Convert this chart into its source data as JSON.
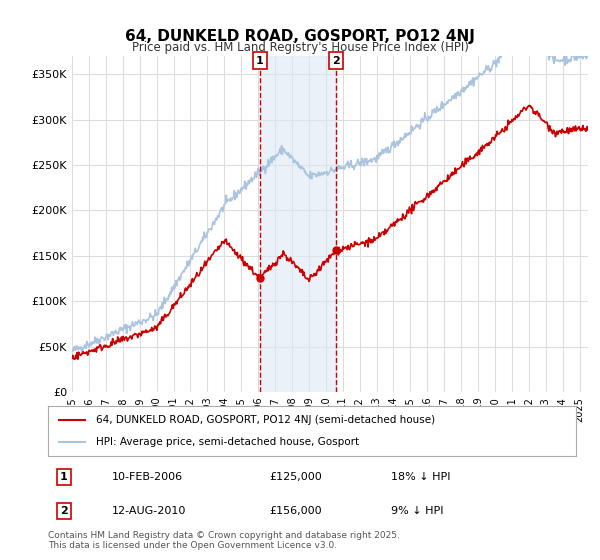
{
  "title": "64, DUNKELD ROAD, GOSPORT, PO12 4NJ",
  "subtitle": "Price paid vs. HM Land Registry's House Price Index (HPI)",
  "xlabel": "",
  "ylabel": "",
  "ylim": [
    0,
    370000
  ],
  "yticks": [
    0,
    50000,
    100000,
    150000,
    200000,
    250000,
    300000,
    350000
  ],
  "ytick_labels": [
    "£0",
    "£50K",
    "£100K",
    "£150K",
    "£200K",
    "£250K",
    "£300K",
    "£350K"
  ],
  "background_color": "#ffffff",
  "plot_bg_color": "#ffffff",
  "grid_color": "#dddddd",
  "hpi_color": "#aac4e0",
  "price_color": "#cc0000",
  "purchase1_date_num": 2006.11,
  "purchase1_price": 125000,
  "purchase1_label": "1",
  "purchase1_date_str": "10-FEB-2006",
  "purchase1_hpi_pct": "18% ↓ HPI",
  "purchase2_date_num": 2010.62,
  "purchase2_price": 156000,
  "purchase2_label": "2",
  "purchase2_date_str": "12-AUG-2010",
  "purchase2_hpi_pct": "9% ↓ HPI",
  "legend_line1": "64, DUNKELD ROAD, GOSPORT, PO12 4NJ (semi-detached house)",
  "legend_line2": "HPI: Average price, semi-detached house, Gosport",
  "footnote": "Contains HM Land Registry data © Crown copyright and database right 2025.\nThis data is licensed under the Open Government Licence v3.0.",
  "shade_color": "#dce9f5",
  "vline_color": "#cc0000"
}
